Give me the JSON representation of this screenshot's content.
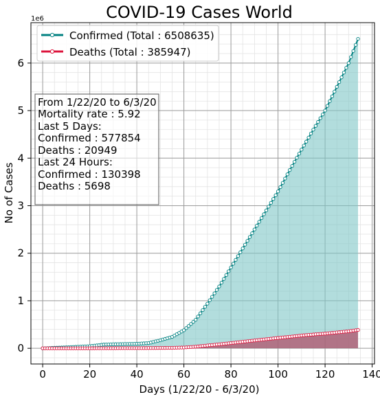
{
  "chart_data": {
    "type": "line",
    "title": "COVID-19 Cases World",
    "xlabel": "Days (1/22/20 - 6/3/20)",
    "ylabel": "No of Cases",
    "y_offset_label": "1e6",
    "xlim": [
      -5,
      141
    ],
    "ylim": [
      -330000,
      6850000
    ],
    "x_ticks": [
      0,
      20,
      40,
      60,
      80,
      100,
      120,
      140
    ],
    "x_tick_labels": [
      "0",
      "20",
      "40",
      "60",
      "80",
      "100",
      "120",
      "140"
    ],
    "y_ticks": [
      0,
      1000000,
      2000000,
      3000000,
      4000000,
      5000000,
      6000000
    ],
    "y_tick_labels": [
      "0",
      "1",
      "2",
      "3",
      "4",
      "5",
      "6"
    ],
    "grid": true,
    "minor_grid": true,
    "legend_position": "top-left",
    "series": [
      {
        "name": "Confirmed (Total : 6508635)",
        "color": "#008080",
        "fill": "#7fc6c6",
        "keypoints": [
          [
            0,
            555
          ],
          [
            10,
            20000
          ],
          [
            20,
            45000
          ],
          [
            26,
            79000
          ],
          [
            30,
            85000
          ],
          [
            40,
            95000
          ],
          [
            45,
            110000
          ],
          [
            50,
            170000
          ],
          [
            55,
            240000
          ],
          [
            60,
            380000
          ],
          [
            65,
            600000
          ],
          [
            70,
            940000
          ],
          [
            75,
            1300000
          ],
          [
            80,
            1700000
          ],
          [
            85,
            2100000
          ],
          [
            90,
            2500000
          ],
          [
            95,
            2900000
          ],
          [
            100,
            3300000
          ],
          [
            105,
            3750000
          ],
          [
            110,
            4180000
          ],
          [
            115,
            4600000
          ],
          [
            120,
            5000000
          ],
          [
            125,
            5500000
          ],
          [
            130,
            6000000
          ],
          [
            134,
            6508635
          ]
        ]
      },
      {
        "name": "Deaths (Total : 385947)",
        "color": "#dc143c",
        "fill": "#b0506a",
        "keypoints": [
          [
            0,
            17
          ],
          [
            20,
            900
          ],
          [
            30,
            3000
          ],
          [
            45,
            5000
          ],
          [
            55,
            10000
          ],
          [
            60,
            17000
          ],
          [
            65,
            34000
          ],
          [
            70,
            60000
          ],
          [
            75,
            84000
          ],
          [
            80,
            110000
          ],
          [
            85,
            137000
          ],
          [
            90,
            165000
          ],
          [
            95,
            192000
          ],
          [
            100,
            218000
          ],
          [
            105,
            242000
          ],
          [
            110,
            270000
          ],
          [
            115,
            290000
          ],
          [
            120,
            310000
          ],
          [
            125,
            334000
          ],
          [
            130,
            358000
          ],
          [
            134,
            385947
          ]
        ]
      }
    ],
    "annotation": [
      "From 1/22/20 to 6/3/20",
      "Mortality rate : 5.92",
      "Last 5 Days:",
      "Confirmed : 577854",
      "Deaths : 20949",
      "Last 24 Hours:",
      "Confirmed : 130398",
      "Deaths : 5698"
    ]
  }
}
